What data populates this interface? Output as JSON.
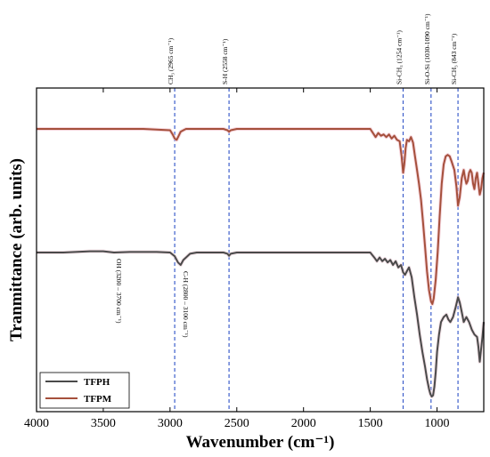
{
  "chart_data": {
    "type": "line",
    "title": "",
    "xlabel": "Wavenumber (cm⁻¹)",
    "ylabel": "Tranmittance (arb. units)",
    "xlim": [
      4000,
      650
    ],
    "x_reversed": true,
    "x_ticks": [
      4000,
      3500,
      3000,
      2500,
      2000,
      1500,
      1000
    ],
    "y_tick_labels": false,
    "grid": false,
    "legend_position": "bottom-left",
    "series": [
      {
        "name": "TFPH",
        "color": "#4a4a4a",
        "offset": 0.0,
        "x": [
          4000,
          3800,
          3600,
          3500,
          3420,
          3300,
          3100,
          3000,
          2965,
          2940,
          2920,
          2900,
          2880,
          2850,
          2800,
          2700,
          2600,
          2570,
          2558,
          2545,
          2500,
          2300,
          2000,
          1700,
          1500,
          1470,
          1450,
          1430,
          1410,
          1390,
          1370,
          1350,
          1330,
          1310,
          1290,
          1270,
          1254,
          1240,
          1225,
          1210,
          1190,
          1170,
          1150,
          1130,
          1110,
          1090,
          1075,
          1060,
          1050,
          1040,
          1030,
          1020,
          1010,
          1000,
          985,
          970,
          950,
          930,
          915,
          900,
          880,
          860,
          843,
          830,
          815,
          800,
          780,
          760,
          740,
          720,
          700,
          690,
          680,
          670,
          660,
          650
        ],
        "y": [
          0.58,
          0.58,
          0.585,
          0.585,
          0.58,
          0.582,
          0.582,
          0.58,
          0.565,
          0.54,
          0.53,
          0.55,
          0.56,
          0.575,
          0.58,
          0.58,
          0.58,
          0.575,
          0.567,
          0.575,
          0.58,
          0.58,
          0.58,
          0.58,
          0.58,
          0.56,
          0.545,
          0.56,
          0.545,
          0.555,
          0.54,
          0.55,
          0.53,
          0.545,
          0.52,
          0.53,
          0.5,
          0.49,
          0.505,
          0.52,
          0.48,
          0.4,
          0.33,
          0.25,
          0.18,
          0.12,
          0.07,
          0.03,
          0.01,
          0.0,
          0.005,
          0.04,
          0.1,
          0.18,
          0.25,
          0.3,
          0.32,
          0.33,
          0.31,
          0.3,
          0.32,
          0.36,
          0.4,
          0.38,
          0.34,
          0.3,
          0.32,
          0.3,
          0.27,
          0.25,
          0.24,
          0.2,
          0.14,
          0.19,
          0.24,
          0.3
        ]
      },
      {
        "name": "TFPM",
        "color": "#a5503c",
        "offset": 0.0,
        "x": [
          4000,
          3800,
          3600,
          3400,
          3200,
          3000,
          2980,
          2965,
          2950,
          2935,
          2920,
          2900,
          2880,
          2850,
          2800,
          2700,
          2600,
          2570,
          2558,
          2545,
          2500,
          2300,
          2000,
          1700,
          1500,
          1480,
          1460,
          1440,
          1420,
          1400,
          1380,
          1360,
          1340,
          1320,
          1300,
          1280,
          1265,
          1254,
          1245,
          1235,
          1225,
          1210,
          1195,
          1180,
          1165,
          1150,
          1135,
          1120,
          1105,
          1090,
          1075,
          1060,
          1045,
          1035,
          1025,
          1010,
          995,
          980,
          965,
          950,
          935,
          920,
          905,
          890,
          870,
          855,
          843,
          830,
          815,
          800,
          790,
          780,
          770,
          760,
          750,
          740,
          730,
          720,
          710,
          700,
          690,
          680,
          670,
          660,
          650
        ],
        "y": [
          1.0,
          1.0,
          1.0,
          1.0,
          1.0,
          0.995,
          0.98,
          0.965,
          0.96,
          0.975,
          0.99,
          0.995,
          1.0,
          1.0,
          1.0,
          1.0,
          1.0,
          0.995,
          0.99,
          0.995,
          1.0,
          1.0,
          1.0,
          1.0,
          1.0,
          0.985,
          0.97,
          0.985,
          0.975,
          0.98,
          0.97,
          0.98,
          0.965,
          0.975,
          0.96,
          0.955,
          0.9,
          0.84,
          0.87,
          0.93,
          0.96,
          0.955,
          0.97,
          0.95,
          0.9,
          0.85,
          0.8,
          0.74,
          0.66,
          0.57,
          0.48,
          0.41,
          0.37,
          0.36,
          0.38,
          0.45,
          0.55,
          0.68,
          0.8,
          0.87,
          0.9,
          0.905,
          0.9,
          0.88,
          0.85,
          0.79,
          0.72,
          0.75,
          0.82,
          0.85,
          0.82,
          0.8,
          0.81,
          0.84,
          0.85,
          0.84,
          0.8,
          0.78,
          0.82,
          0.84,
          0.8,
          0.76,
          0.78,
          0.82,
          0.84
        ]
      }
    ],
    "reference_lines": [
      {
        "x": 2965,
        "color": "#3d5ecb",
        "label": "CH₃ (2965 cm⁻¹)"
      },
      {
        "x": 2558,
        "color": "#3d5ecb",
        "label": "S-H (2558 cm⁻¹)"
      },
      {
        "x": 1254,
        "color": "#3d5ecb",
        "label": "Si-CH₃ (1254 cm⁻¹)"
      },
      {
        "x": 1045,
        "color": "#3d5ecb",
        "label": "Si-O-Si (1030-1090 cm⁻¹)"
      },
      {
        "x": 843,
        "color": "#3d5ecb",
        "label": "Si-CH₃ (843 cm⁻¹)"
      }
    ],
    "band_labels": [
      {
        "x": 3420,
        "label": "OH (3200 – 3700 cm⁻¹)"
      },
      {
        "x": 2920,
        "label": "C-H (2800 – 3100 cm⁻¹)"
      }
    ]
  }
}
